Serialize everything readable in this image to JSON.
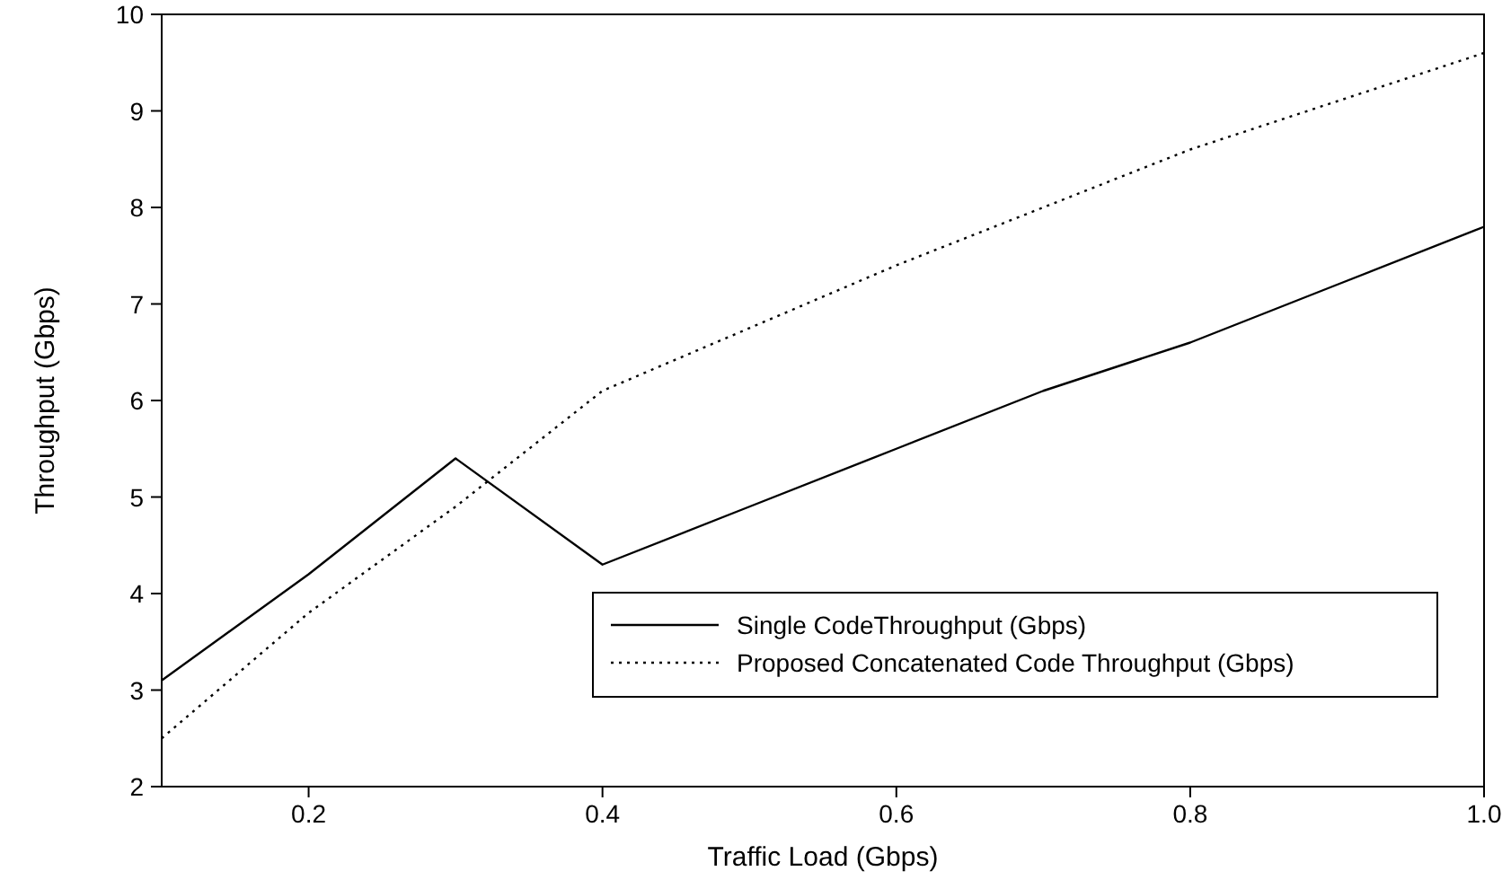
{
  "chart_data": {
    "type": "line",
    "xlabel": "Traffic Load (Gbps)",
    "ylabel": "Throughput (Gbps)",
    "x": [
      0.1,
      0.2,
      0.3,
      0.4,
      0.5,
      0.6,
      0.7,
      0.8,
      0.9,
      1.0
    ],
    "series": [
      {
        "name": "Single CodeThroughput (Gbps)",
        "color": "#000000",
        "line_style": "solid",
        "values": [
          3.1,
          4.2,
          5.4,
          4.3,
          4.9,
          5.5,
          6.1,
          6.6,
          7.2,
          7.8
        ]
      },
      {
        "name": "Proposed Concatenated Code Throughput (Gbps)",
        "color": "#000000",
        "line_style": "dotted",
        "values": [
          2.5,
          3.8,
          4.9,
          6.1,
          6.75,
          7.4,
          8.0,
          8.6,
          9.1,
          9.6
        ]
      }
    ],
    "xlim": [
      0.1,
      1.0
    ],
    "xticks": [
      0.2,
      0.4,
      0.6,
      0.8,
      {
        "value": 1.0,
        "label": "1.0"
      }
    ],
    "ylim": [
      2,
      10
    ],
    "yticks": [
      2,
      3,
      4,
      5,
      6,
      7,
      8,
      9,
      10
    ],
    "grid": false,
    "legend": "bottom right",
    "marker": "none"
  }
}
